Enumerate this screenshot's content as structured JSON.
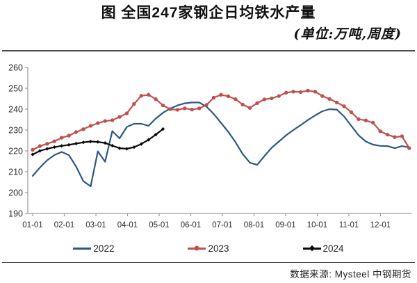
{
  "header": {
    "title": "图 全国247家钢企日均铁水产量",
    "subtitle": "(单位:万吨,周度)"
  },
  "footer": {
    "source": "数据来源: Mysteel 中钢期货"
  },
  "chart_data": {
    "type": "line",
    "title": "图 全国247家钢企日均铁水产量",
    "subtitle": "(单位:万吨,周度)",
    "x_mode": "weekly points, axis labeled by month start",
    "x_ticks": [
      "01-01",
      "02-01",
      "03-01",
      "04-01",
      "05-01",
      "06-01",
      "07-01",
      "08-01",
      "09-01",
      "10-01",
      "11-01",
      "12-01"
    ],
    "y_ticks": [
      260,
      250,
      240,
      230,
      220,
      210,
      200,
      190
    ],
    "ylim": [
      190,
      260
    ],
    "grid": false,
    "legend_position": "bottom",
    "axis_color": "#9a9a9a",
    "label_color": "#2b2b2b",
    "series": [
      {
        "name": "2022",
        "color": "#2B5883",
        "marker": "none",
        "values": [
          208.0,
          212.0,
          215.5,
          218.0,
          219.5,
          218.0,
          212.5,
          205.5,
          203.0,
          219.8,
          214.8,
          229.5,
          226.0,
          231.5,
          233.0,
          233.0,
          232.0,
          235.5,
          238.3,
          240.3,
          241.8,
          242.8,
          243.2,
          243.2,
          241.2,
          237.7,
          233.5,
          229.2,
          224.2,
          218.5,
          214.3,
          213.3,
          217.5,
          221.5,
          224.5,
          227.5,
          230.0,
          232.3,
          234.8,
          237.0,
          239.0,
          240.0,
          239.8,
          236.5,
          232.0,
          227.5,
          224.5,
          223.0,
          222.4,
          222.3,
          221.3,
          222.3,
          221.7
        ]
      },
      {
        "name": "2023",
        "color": "#C0504D",
        "marker": "circle",
        "values": [
          220.5,
          222.3,
          223.4,
          224.6,
          226.3,
          227.3,
          229.0,
          230.4,
          232.0,
          233.3,
          234.3,
          234.7,
          236.3,
          238.0,
          242.5,
          246.4,
          246.9,
          244.8,
          241.8,
          240.0,
          239.7,
          240.4,
          239.8,
          240.4,
          242.0,
          245.5,
          246.9,
          246.2,
          244.8,
          242.2,
          240.6,
          242.9,
          244.7,
          245.2,
          246.3,
          247.9,
          248.4,
          248.2,
          248.9,
          248.4,
          246.3,
          244.9,
          243.2,
          241.4,
          238.5,
          235.2,
          234.6,
          233.5,
          229.4,
          227.8,
          226.6,
          227.0,
          221.3
        ]
      },
      {
        "name": "2024",
        "color": "#0a0a0a",
        "marker": "diamond",
        "values": [
          218.3,
          220.0,
          221.0,
          221.8,
          222.4,
          222.9,
          223.5,
          224.1,
          224.5,
          224.3,
          223.8,
          222.5,
          221.3,
          221.0,
          221.8,
          223.3,
          225.3,
          227.8,
          230.5
        ]
      }
    ]
  }
}
